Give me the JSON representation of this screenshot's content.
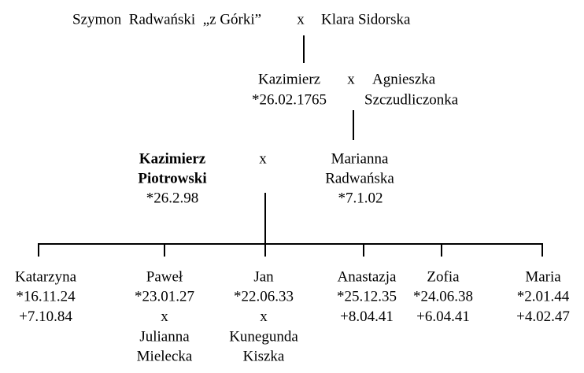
{
  "generations": [
    {
      "left": "Szymon  Radwański  „z Górki”",
      "marker": "x",
      "right": "Klara Sidorska"
    },
    {
      "left": [
        "Kazimierz",
        "*26.02.1765"
      ],
      "marker": "x",
      "right": [
        "Agnieszka",
        "Szczudliczonka"
      ]
    },
    {
      "left": [
        "Kazimierz",
        "Piotrowski",
        "*26.2.98"
      ],
      "marker": "x",
      "right": [
        "Marianna",
        "Radwańska",
        "*7.1.02"
      ]
    }
  ],
  "children": [
    {
      "lines": [
        "Katarzyna",
        "*16.11.24",
        "+7.10.84"
      ]
    },
    {
      "lines": [
        "Paweł",
        "*23.01.27",
        "x",
        "Julianna",
        "Mielecka"
      ]
    },
    {
      "lines": [
        "Jan",
        "*22.06.33",
        "x",
        "Kunegunda",
        "Kiszka"
      ]
    },
    {
      "lines": [
        "Anastazja",
        "*25.12.35",
        "+8.04.41"
      ]
    },
    {
      "lines": [
        "Zofia",
        "*24.06.38",
        "+6.04.41"
      ]
    },
    {
      "lines": [
        "Maria",
        "*2.01.44",
        "+4.02.47"
      ]
    }
  ]
}
